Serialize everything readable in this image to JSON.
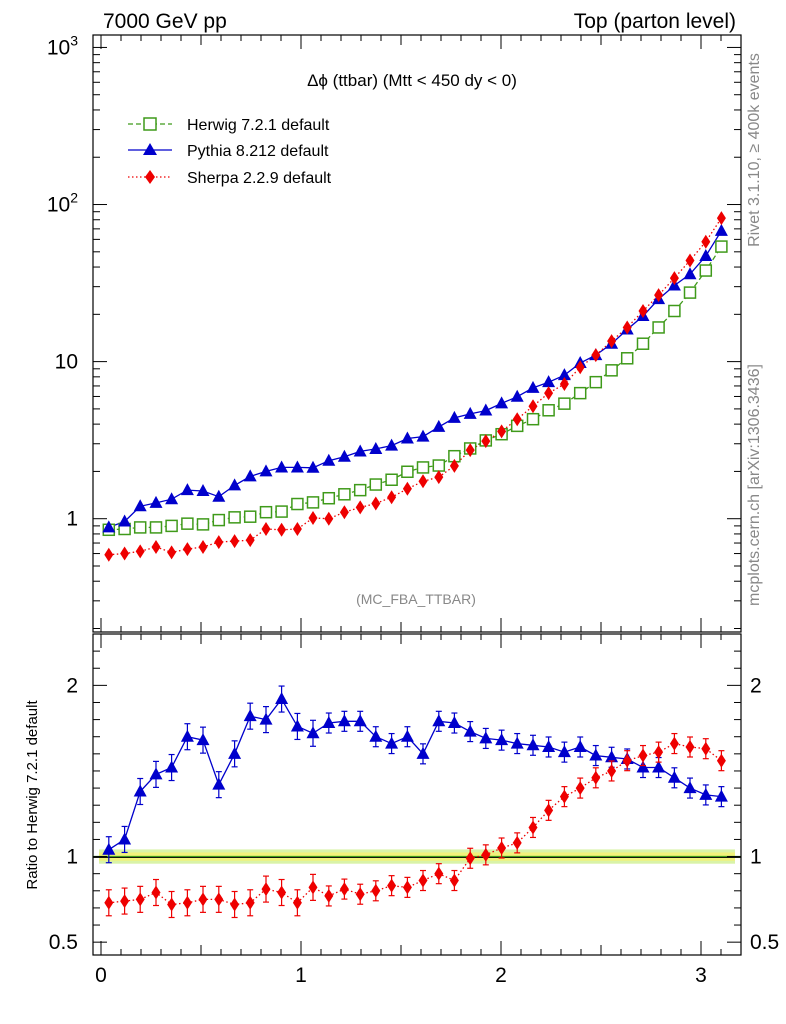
{
  "header": {
    "left": "7000 GeV pp",
    "right": "Top (parton level)"
  },
  "side_labels": {
    "rivet": "Rivet 3.1.10, ≥ 400k events",
    "mcplots": "mcplots.cern.ch [arXiv:1306.3436]"
  },
  "main_plot": {
    "title": "Δϕ (ttbar) (Mtt < 450 dy < 0)",
    "watermark": "(MC_FBA_TTBAR)"
  },
  "ratio_plot": {
    "ylabel": "Ratio to Herwig 7.2.1 default"
  },
  "chart_data": [
    {
      "type": "line",
      "yscale": "log",
      "ylim": [
        0.19,
        1200
      ],
      "xlim": [
        -0.04,
        3.2
      ],
      "yticks": [
        {
          "value": 1,
          "label": "1"
        },
        {
          "value": 10,
          "label": "10"
        },
        {
          "value": 100,
          "label": "10^2"
        },
        {
          "value": 1000,
          "label": "10^3"
        }
      ],
      "x": [
        0.039,
        0.118,
        0.196,
        0.275,
        0.353,
        0.432,
        0.51,
        0.589,
        0.668,
        0.746,
        0.825,
        0.903,
        0.982,
        1.06,
        1.139,
        1.217,
        1.296,
        1.374,
        1.453,
        1.532,
        1.61,
        1.689,
        1.767,
        1.846,
        1.924,
        2.003,
        2.081,
        2.16,
        2.238,
        2.317,
        2.396,
        2.474,
        2.553,
        2.631,
        2.71,
        2.788,
        2.867,
        2.945,
        3.024,
        3.102
      ],
      "legend_position": "top-left",
      "series": [
        {
          "name": "Herwig 7.2.1 default",
          "color": "#3f9a1a",
          "style": "dashed",
          "marker": "open-square",
          "values": [
            0.85,
            0.86,
            0.88,
            0.88,
            0.9,
            0.93,
            0.92,
            0.98,
            1.02,
            1.03,
            1.1,
            1.11,
            1.24,
            1.27,
            1.35,
            1.43,
            1.52,
            1.65,
            1.77,
            1.99,
            2.12,
            2.18,
            2.5,
            2.8,
            3.15,
            3.45,
            3.9,
            4.3,
            4.9,
            5.4,
            6.3,
            7.4,
            8.8,
            10.5,
            13.0,
            16.5,
            21.0,
            27.5,
            38.0,
            54.0
          ]
        },
        {
          "name": "Pythia 8.212 default",
          "color": "#0000cc",
          "style": "solid",
          "marker": "filled-triangle",
          "values": [
            0.88,
            0.96,
            1.2,
            1.26,
            1.33,
            1.52,
            1.5,
            1.38,
            1.63,
            1.86,
            2.0,
            2.12,
            2.12,
            2.11,
            2.34,
            2.48,
            2.68,
            2.78,
            2.92,
            3.24,
            3.33,
            3.84,
            4.38,
            4.65,
            4.88,
            5.42,
            5.98,
            6.8,
            7.4,
            8.2,
            9.8,
            11.0,
            13.0,
            16.0,
            19.5,
            25.0,
            30.5,
            36.0,
            47.0,
            68.0
          ]
        },
        {
          "name": "Sherpa 2.2.9 default",
          "color": "#ee0000",
          "style": "dotted",
          "marker": "filled-diamond",
          "values": [
            0.59,
            0.6,
            0.62,
            0.66,
            0.61,
            0.64,
            0.66,
            0.71,
            0.72,
            0.73,
            0.86,
            0.85,
            0.86,
            1.01,
            1.0,
            1.1,
            1.18,
            1.25,
            1.37,
            1.55,
            1.73,
            1.84,
            2.17,
            2.73,
            3.12,
            3.6,
            4.3,
            5.2,
            6.3,
            7.2,
            9.2,
            11.0,
            13.5,
            16.5,
            21.0,
            26.5,
            34.0,
            44.0,
            58.0,
            82.0
          ]
        }
      ]
    },
    {
      "type": "line",
      "ylabel": "Ratio to Herwig 7.2.1 default",
      "ylim": [
        0.425,
        2.3
      ],
      "xlim": [
        -0.04,
        3.2
      ],
      "yticks": [
        0.5,
        1,
        2
      ],
      "xticks": [
        0,
        1,
        2,
        3
      ],
      "x": [
        0.039,
        0.118,
        0.196,
        0.275,
        0.353,
        0.432,
        0.51,
        0.589,
        0.668,
        0.746,
        0.825,
        0.903,
        0.982,
        1.06,
        1.139,
        1.217,
        1.296,
        1.374,
        1.453,
        1.532,
        1.61,
        1.689,
        1.767,
        1.846,
        1.924,
        2.003,
        2.081,
        2.16,
        2.238,
        2.317,
        2.396,
        2.474,
        2.553,
        2.631,
        2.71,
        2.788,
        2.867,
        2.945,
        3.024,
        3.102
      ],
      "reference": {
        "value": 1.0,
        "band": [
          0.97,
          1.03
        ]
      },
      "series": [
        {
          "name": "Pythia 8.212 default",
          "color": "#0000cc",
          "marker": "filled-triangle",
          "values": [
            1.04,
            1.1,
            1.38,
            1.48,
            1.52,
            1.7,
            1.68,
            1.42,
            1.6,
            1.82,
            1.8,
            1.92,
            1.76,
            1.72,
            1.78,
            1.79,
            1.79,
            1.7,
            1.66,
            1.7,
            1.6,
            1.79,
            1.78,
            1.73,
            1.69,
            1.68,
            1.66,
            1.65,
            1.64,
            1.61,
            1.64,
            1.59,
            1.58,
            1.57,
            1.52,
            1.52,
            1.46,
            1.4,
            1.36,
            1.35
          ]
        },
        {
          "name": "Sherpa 2.2.9 default",
          "color": "#ee0000",
          "marker": "filled-diamond",
          "values": [
            0.73,
            0.74,
            0.75,
            0.79,
            0.72,
            0.73,
            0.75,
            0.75,
            0.72,
            0.73,
            0.81,
            0.79,
            0.73,
            0.82,
            0.77,
            0.81,
            0.78,
            0.8,
            0.83,
            0.82,
            0.86,
            0.9,
            0.86,
            0.99,
            1.01,
            1.05,
            1.08,
            1.17,
            1.27,
            1.35,
            1.4,
            1.46,
            1.5,
            1.56,
            1.59,
            1.61,
            1.66,
            1.64,
            1.63,
            1.56
          ]
        }
      ]
    }
  ]
}
